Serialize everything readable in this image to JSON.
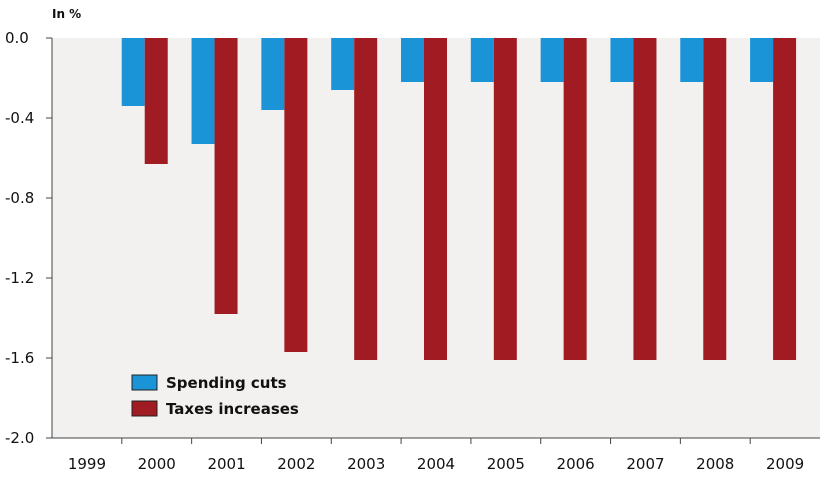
{
  "chart_data": {
    "type": "bar",
    "ylabel": "In %",
    "categories": [
      "1999",
      "2000",
      "2001",
      "2002",
      "2003",
      "2004",
      "2005",
      "2006",
      "2007",
      "2008",
      "2009"
    ],
    "yticks": [
      "0.0",
      "-0.4",
      "-0.8",
      "-1.2",
      "-1.6",
      "-2.0"
    ],
    "ylim": [
      -2.0,
      0.0
    ],
    "grid": false,
    "legend_position": "bottom-left",
    "series": [
      {
        "name": "Spending cuts",
        "color": "#1b93d7",
        "values": [
          null,
          -0.34,
          -0.53,
          -0.36,
          -0.26,
          -0.22,
          -0.22,
          -0.22,
          -0.22,
          -0.22,
          -0.22
        ]
      },
      {
        "name": "Taxes increases",
        "color": "#a01b22",
        "values": [
          null,
          -0.63,
          -1.38,
          -1.57,
          -1.61,
          -1.61,
          -1.61,
          -1.61,
          -1.61,
          -1.61,
          -1.61
        ]
      }
    ],
    "plot_background": "#f2f1ef"
  }
}
